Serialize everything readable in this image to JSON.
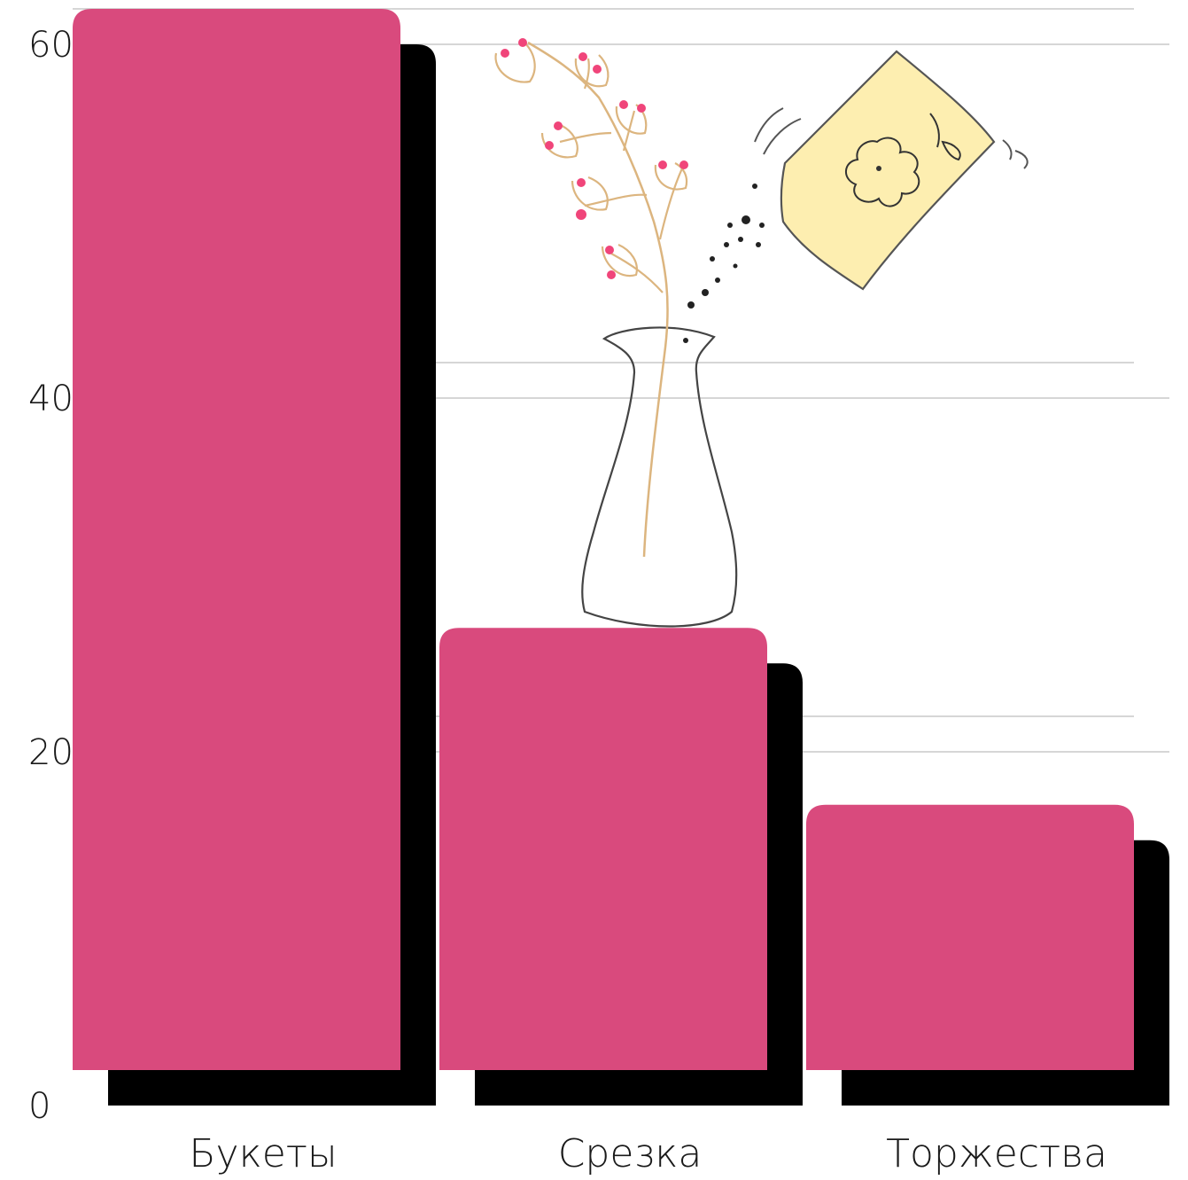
{
  "chart_data": {
    "type": "bar",
    "categories": [
      "Букеты",
      "Срезка",
      "Торжества"
    ],
    "values": [
      60,
      25,
      15
    ],
    "title": "",
    "xlabel": "",
    "ylabel": "",
    "ylim": [
      0,
      60
    ],
    "yticks": [
      0,
      20,
      40,
      60
    ],
    "grid": true,
    "colors": {
      "bar": "#d94a7d",
      "shadow": "#000000",
      "grid": "#c8c8c8",
      "text": "#1a1a1a"
    }
  },
  "decorations": {
    "illustration": "flower-vase-and-seed-packet-illustration"
  }
}
